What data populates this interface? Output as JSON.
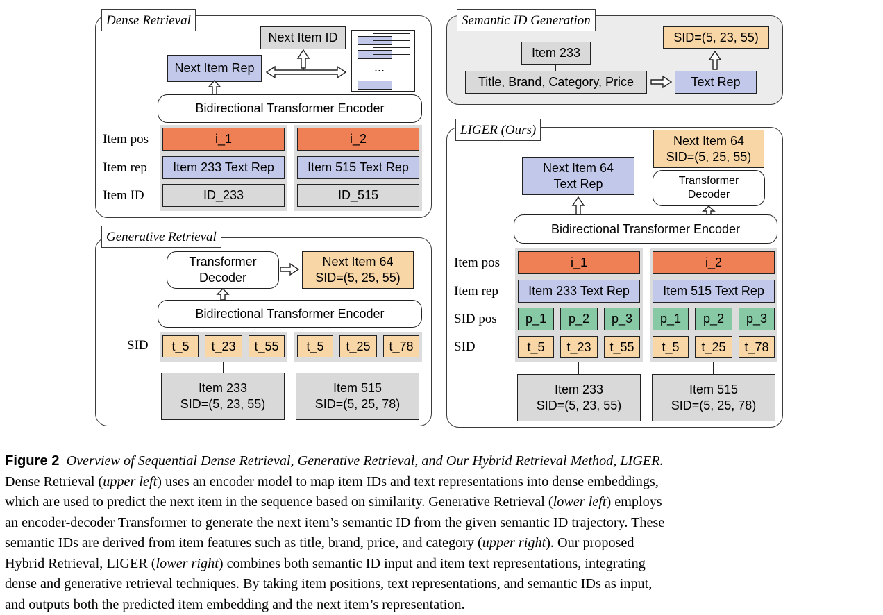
{
  "dense": {
    "title": "Dense Retrieval",
    "next_item_id": "Next Item ID",
    "next_item_rep": "Next Item Rep",
    "ellipsis": "...",
    "encoder": "Bidirectional Transformer Encoder",
    "row_labels": [
      "Item pos",
      "Item rep",
      "Item ID"
    ],
    "pos": [
      "i_1",
      "i_2"
    ],
    "rep": [
      "Item 233 Text Rep",
      "Item 515 Text Rep"
    ],
    "ids": [
      "ID_233",
      "ID_515"
    ]
  },
  "semantic": {
    "title": "Semantic ID Generation",
    "item": "Item 233",
    "features": "Title, Brand, Category, Price",
    "text_rep": "Text Rep",
    "sid": "SID=(5, 23, 55)"
  },
  "generative": {
    "title": "Generative Retrieval",
    "decoder": "Transformer\nDecoder",
    "next": "Next Item 64\nSID=(5, 25, 55)",
    "encoder": "Bidirectional Transformer Encoder",
    "sid_label": "SID",
    "tokens_a": [
      "t_5",
      "t_23",
      "t_55"
    ],
    "tokens_b": [
      "t_5",
      "t_25",
      "t_78"
    ],
    "item_a": "Item 233\nSID=(5, 23, 55)",
    "item_b": "Item 515\nSID=(5, 25, 78)"
  },
  "liger": {
    "title": "LIGER (Ours)",
    "next_text": "Next Item 64\nText Rep",
    "next_sid": "Next Item 64\nSID=(5, 25, 55)",
    "decoder": "Transformer\nDecoder",
    "encoder": "Bidirectional Transformer Encoder",
    "row_labels": [
      "Item pos",
      "Item rep",
      "SID pos",
      "SID"
    ],
    "pos": [
      "i_1",
      "i_2"
    ],
    "rep": [
      "Item 233 Text Rep",
      "Item 515 Text Rep"
    ],
    "sid_pos": [
      "p_1",
      "p_2",
      "p_3"
    ],
    "tokens_a": [
      "t_5",
      "t_23",
      "t_55"
    ],
    "tokens_b": [
      "t_5",
      "t_25",
      "t_78"
    ],
    "item_a": "Item 233\nSID=(5, 23, 55)",
    "item_b": "Item 515\nSID=(5, 25, 78)"
  },
  "caption": {
    "figure_label": "Figure 2",
    "title": "Overview of Sequential Dense Retrieval, Generative Retrieval, and Our Hybrid Retrieval Method, LIGER.",
    "p1": "Dense Retrieval (",
    "p2": "upper left",
    "p3": ") uses an encoder model to map item IDs and text representations into dense embeddings,",
    "p4": "which are used to predict the next item in the sequence based on similarity. Generative Retrieval (",
    "p5": "lower left",
    "p6": ") employs",
    "p7": "an encoder-decoder Transformer to generate the next item’s semantic ID from the given semantic ID trajectory. These",
    "p8": "semantic IDs are derived from item features such as title, brand, price, and category (",
    "p9": "upper right",
    "p10": "). Our proposed",
    "p11": "Hybrid Retrieval, LIGER (",
    "p12": "lower right",
    "p13": ") combines both semantic ID input and item text representations, integrating",
    "p14": "dense and generative retrieval techniques. By taking item positions, text representations, and semantic IDs as input,",
    "p15": "and outputs both the predicted item embedding and the next item’s representation."
  }
}
